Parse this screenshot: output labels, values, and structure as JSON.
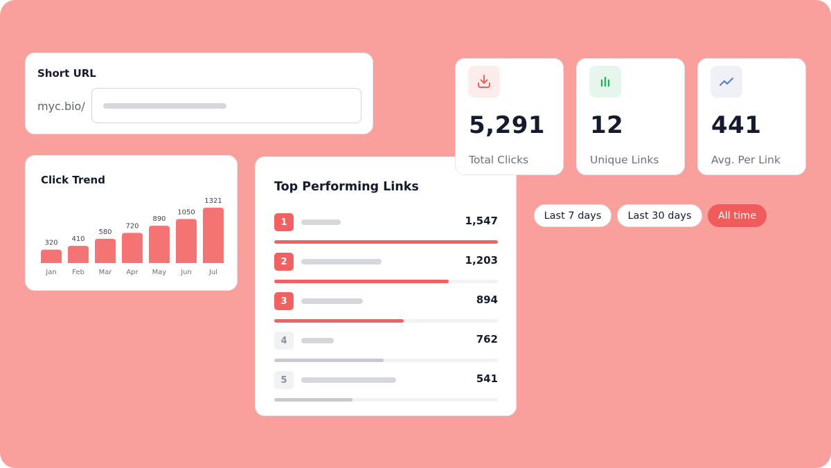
{
  "short_url": {
    "title": "Short URL",
    "prefix": "myc.bio/"
  },
  "click_trend": {
    "title": "Click Trend"
  },
  "chart_data": {
    "type": "bar",
    "categories": [
      "Jan",
      "Feb",
      "Mar",
      "Apr",
      "May",
      "Jun",
      "Jul"
    ],
    "values": [
      320,
      410,
      580,
      720,
      890,
      1050,
      1321
    ],
    "title": "Click Trend",
    "xlabel": "",
    "ylabel": "",
    "ylim": [
      0,
      1321
    ],
    "grid": false,
    "data_labels": true,
    "bar_color": "#f47474"
  },
  "top_links": {
    "title": "Top Performing Links",
    "items": [
      {
        "rank": "1",
        "value": "1,547",
        "share": 1.0,
        "highlight": true
      },
      {
        "rank": "2",
        "value": "1,203",
        "share": 0.78,
        "highlight": true
      },
      {
        "rank": "3",
        "value": "894",
        "share": 0.58,
        "highlight": true
      },
      {
        "rank": "4",
        "value": "762",
        "share": 0.49,
        "highlight": false
      },
      {
        "rank": "5",
        "value": "541",
        "share": 0.35,
        "highlight": false
      }
    ]
  },
  "stats": [
    {
      "value": "5,291",
      "label": "Total Clicks",
      "icon": "download-icon",
      "icon_color": "#f05c5c",
      "icon_bg": "#fdecec"
    },
    {
      "value": "12",
      "label": "Unique Links",
      "icon": "bar-chart-icon",
      "icon_color": "#22b163",
      "icon_bg": "#e6f6ed"
    },
    {
      "value": "441",
      "label": "Avg. Per Link",
      "icon": "trend-up-icon",
      "icon_color": "#4a7ce0",
      "icon_bg": "#eff1f6"
    }
  ],
  "filters": {
    "options": [
      "Last 7 days",
      "Last 30 days",
      "All time"
    ],
    "selected": "All time"
  },
  "colors": {
    "background": "#f9a09d",
    "accent": "#f05c5c",
    "bar_hot": "#f26161",
    "bar_cold": "#c7c9ce"
  }
}
